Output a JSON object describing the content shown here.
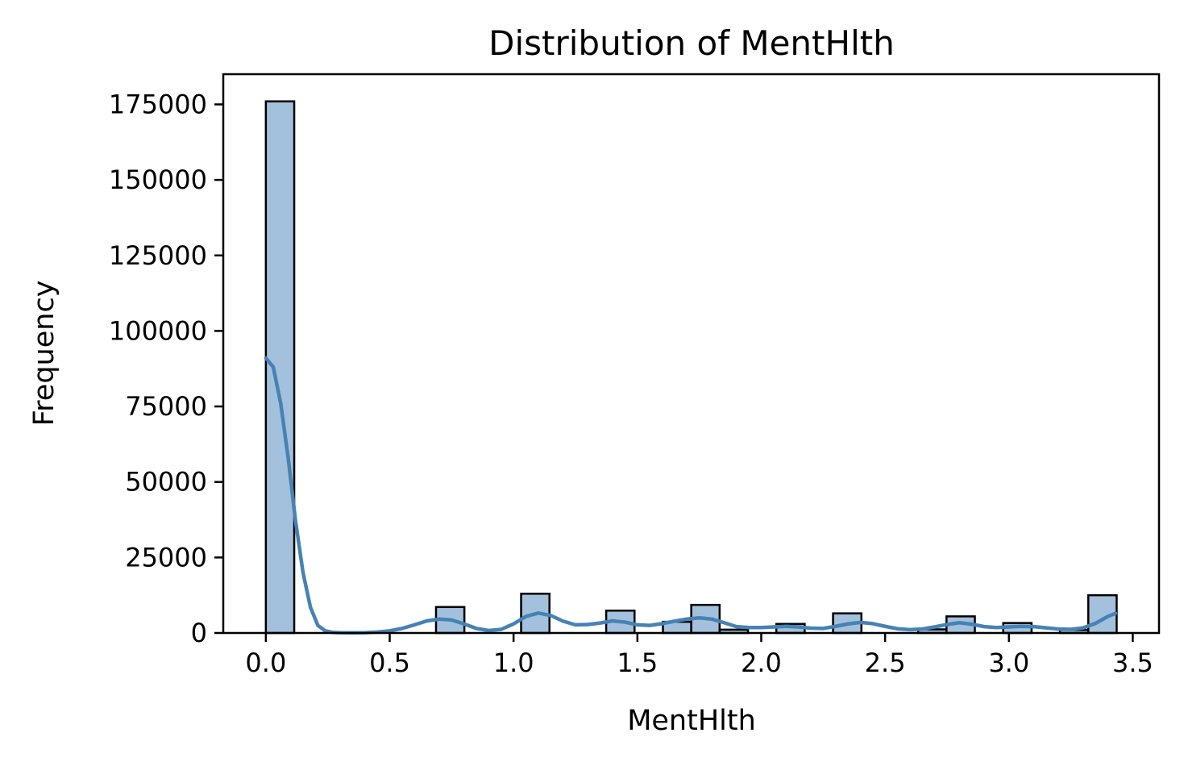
{
  "chart_data": {
    "type": "bar",
    "title": "Distribution of MentHlth",
    "xlabel": "MentHlth",
    "ylabel": "Frequency",
    "xlim": [
      -0.172,
      3.606
    ],
    "ylim": [
      0,
      185000
    ],
    "xticks": [
      0.0,
      0.5,
      1.0,
      1.5,
      2.0,
      2.5,
      3.0,
      3.5
    ],
    "xtick_labels": [
      "0.0",
      "0.5",
      "1.0",
      "1.5",
      "2.0",
      "2.5",
      "3.0",
      "3.5"
    ],
    "yticks": [
      0,
      25000,
      50000,
      75000,
      100000,
      125000,
      150000,
      175000
    ],
    "ytick_labels": [
      "0",
      "25000",
      "50000",
      "75000",
      "100000",
      "125000",
      "150000",
      "175000"
    ],
    "bin_width": 0.1145,
    "bins": [
      {
        "x0": 0.0,
        "value": 176000
      },
      {
        "x0": 0.1145,
        "value": 0
      },
      {
        "x0": 0.229,
        "value": 0
      },
      {
        "x0": 0.3435,
        "value": 0
      },
      {
        "x0": 0.458,
        "value": 0
      },
      {
        "x0": 0.5725,
        "value": 0
      },
      {
        "x0": 0.687,
        "value": 8600
      },
      {
        "x0": 0.8015,
        "value": 0
      },
      {
        "x0": 0.916,
        "value": 0
      },
      {
        "x0": 1.0305,
        "value": 13000
      },
      {
        "x0": 1.145,
        "value": 0
      },
      {
        "x0": 1.2595,
        "value": 0
      },
      {
        "x0": 1.374,
        "value": 7400
      },
      {
        "x0": 1.4885,
        "value": 0
      },
      {
        "x0": 1.603,
        "value": 3700
      },
      {
        "x0": 1.7175,
        "value": 9300
      },
      {
        "x0": 1.832,
        "value": 1100
      },
      {
        "x0": 1.9465,
        "value": 0
      },
      {
        "x0": 2.061,
        "value": 3000
      },
      {
        "x0": 2.1755,
        "value": 0
      },
      {
        "x0": 2.29,
        "value": 6500
      },
      {
        "x0": 2.4045,
        "value": 0
      },
      {
        "x0": 2.519,
        "value": 0
      },
      {
        "x0": 2.6335,
        "value": 1200
      },
      {
        "x0": 2.748,
        "value": 5500
      },
      {
        "x0": 2.8625,
        "value": 0
      },
      {
        "x0": 2.977,
        "value": 3300
      },
      {
        "x0": 3.0915,
        "value": 0
      },
      {
        "x0": 3.206,
        "value": 1000
      },
      {
        "x0": 3.3205,
        "value": 12500
      }
    ],
    "kde": {
      "x": [
        0.0,
        0.03,
        0.06,
        0.09,
        0.12,
        0.15,
        0.18,
        0.21,
        0.24,
        0.27,
        0.3,
        0.35,
        0.4,
        0.45,
        0.5,
        0.55,
        0.6,
        0.65,
        0.7,
        0.75,
        0.8,
        0.85,
        0.9,
        0.95,
        1.0,
        1.05,
        1.1,
        1.15,
        1.2,
        1.25,
        1.3,
        1.35,
        1.4,
        1.45,
        1.5,
        1.55,
        1.6,
        1.65,
        1.7,
        1.75,
        1.8,
        1.85,
        1.9,
        1.95,
        2.0,
        2.05,
        2.1,
        2.15,
        2.2,
        2.25,
        2.3,
        2.35,
        2.4,
        2.45,
        2.5,
        2.55,
        2.6,
        2.65,
        2.7,
        2.75,
        2.8,
        2.85,
        2.9,
        2.95,
        3.0,
        3.05,
        3.1,
        3.15,
        3.2,
        3.25,
        3.3,
        3.35,
        3.4,
        3.43
      ],
      "y": [
        91000,
        88000,
        76000,
        58000,
        37000,
        20000,
        8500,
        2500,
        700,
        200,
        100,
        50,
        100,
        300,
        700,
        1500,
        2700,
        4000,
        4600,
        4300,
        3000,
        1500,
        800,
        1200,
        3000,
        5500,
        6600,
        5800,
        3900,
        2700,
        2800,
        3300,
        4000,
        3600,
        2700,
        2500,
        3100,
        3900,
        4600,
        5000,
        4600,
        3400,
        2100,
        1800,
        1800,
        2000,
        2200,
        2000,
        1600,
        1500,
        2200,
        3000,
        3500,
        3100,
        2200,
        1400,
        1100,
        1300,
        2000,
        2800,
        3400,
        2900,
        2100,
        1800,
        2000,
        2200,
        2100,
        1700,
        1300,
        1200,
        1700,
        3200,
        5500,
        6500
      ]
    },
    "bar_fill": "#a3c1dc",
    "bar_stroke": "#000000",
    "kde_color": "#4682b4",
    "grid": false,
    "legend": "none"
  }
}
